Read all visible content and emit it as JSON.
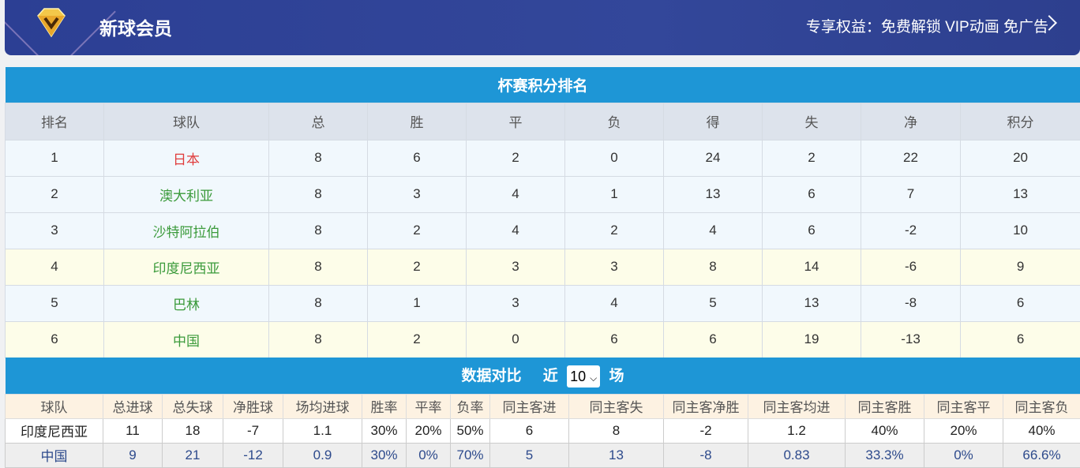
{
  "banner": {
    "title": "新球会员",
    "benefits": "专享权益：免费解锁 VIP动画 免广告"
  },
  "standings": {
    "title": "杯赛积分排名",
    "headers": [
      "排名",
      "球队",
      "总",
      "胜",
      "平",
      "负",
      "得",
      "失",
      "净",
      "积分"
    ],
    "rows": [
      [
        "1",
        "日本",
        "8",
        "6",
        "2",
        "0",
        "24",
        "2",
        "22",
        "20"
      ],
      [
        "2",
        "澳大利亚",
        "8",
        "3",
        "4",
        "1",
        "13",
        "6",
        "7",
        "13"
      ],
      [
        "3",
        "沙特阿拉伯",
        "8",
        "2",
        "4",
        "2",
        "4",
        "6",
        "-2",
        "10"
      ],
      [
        "4",
        "印度尼西亚",
        "8",
        "2",
        "3",
        "3",
        "8",
        "14",
        "-6",
        "9"
      ],
      [
        "5",
        "巴林",
        "8",
        "1",
        "3",
        "4",
        "5",
        "13",
        "-8",
        "6"
      ],
      [
        "6",
        "中国",
        "8",
        "2",
        "0",
        "6",
        "6",
        "19",
        "-13",
        "6"
      ]
    ]
  },
  "compare": {
    "title": "数据对比",
    "recent_prefix": "近",
    "recent_value": "10",
    "recent_suffix": "场",
    "headers": [
      "球队",
      "总进球",
      "总失球",
      "净胜球",
      "场均进球",
      "胜率",
      "平率",
      "负率",
      "同主客进",
      "同主客失",
      "同主客净胜",
      "同主客均进",
      "同主客胜",
      "同主客平",
      "同主客负"
    ],
    "rows": [
      [
        "印度尼西亚",
        "11",
        "18",
        "-7",
        "1.1",
        "30%",
        "20%",
        "50%",
        "6",
        "8",
        "-2",
        "1.2",
        "40%",
        "20%",
        "40%"
      ],
      [
        "中国",
        "9",
        "21",
        "-12",
        "0.9",
        "30%",
        "0%",
        "70%",
        "5",
        "13",
        "-8",
        "0.83",
        "33.3%",
        "0%",
        "66.6%"
      ]
    ]
  },
  "colors": {
    "header_blue": "#1e96d6",
    "banner": "#2c3f94",
    "leader": "#e03c3c",
    "team": "#3a9a3a"
  }
}
